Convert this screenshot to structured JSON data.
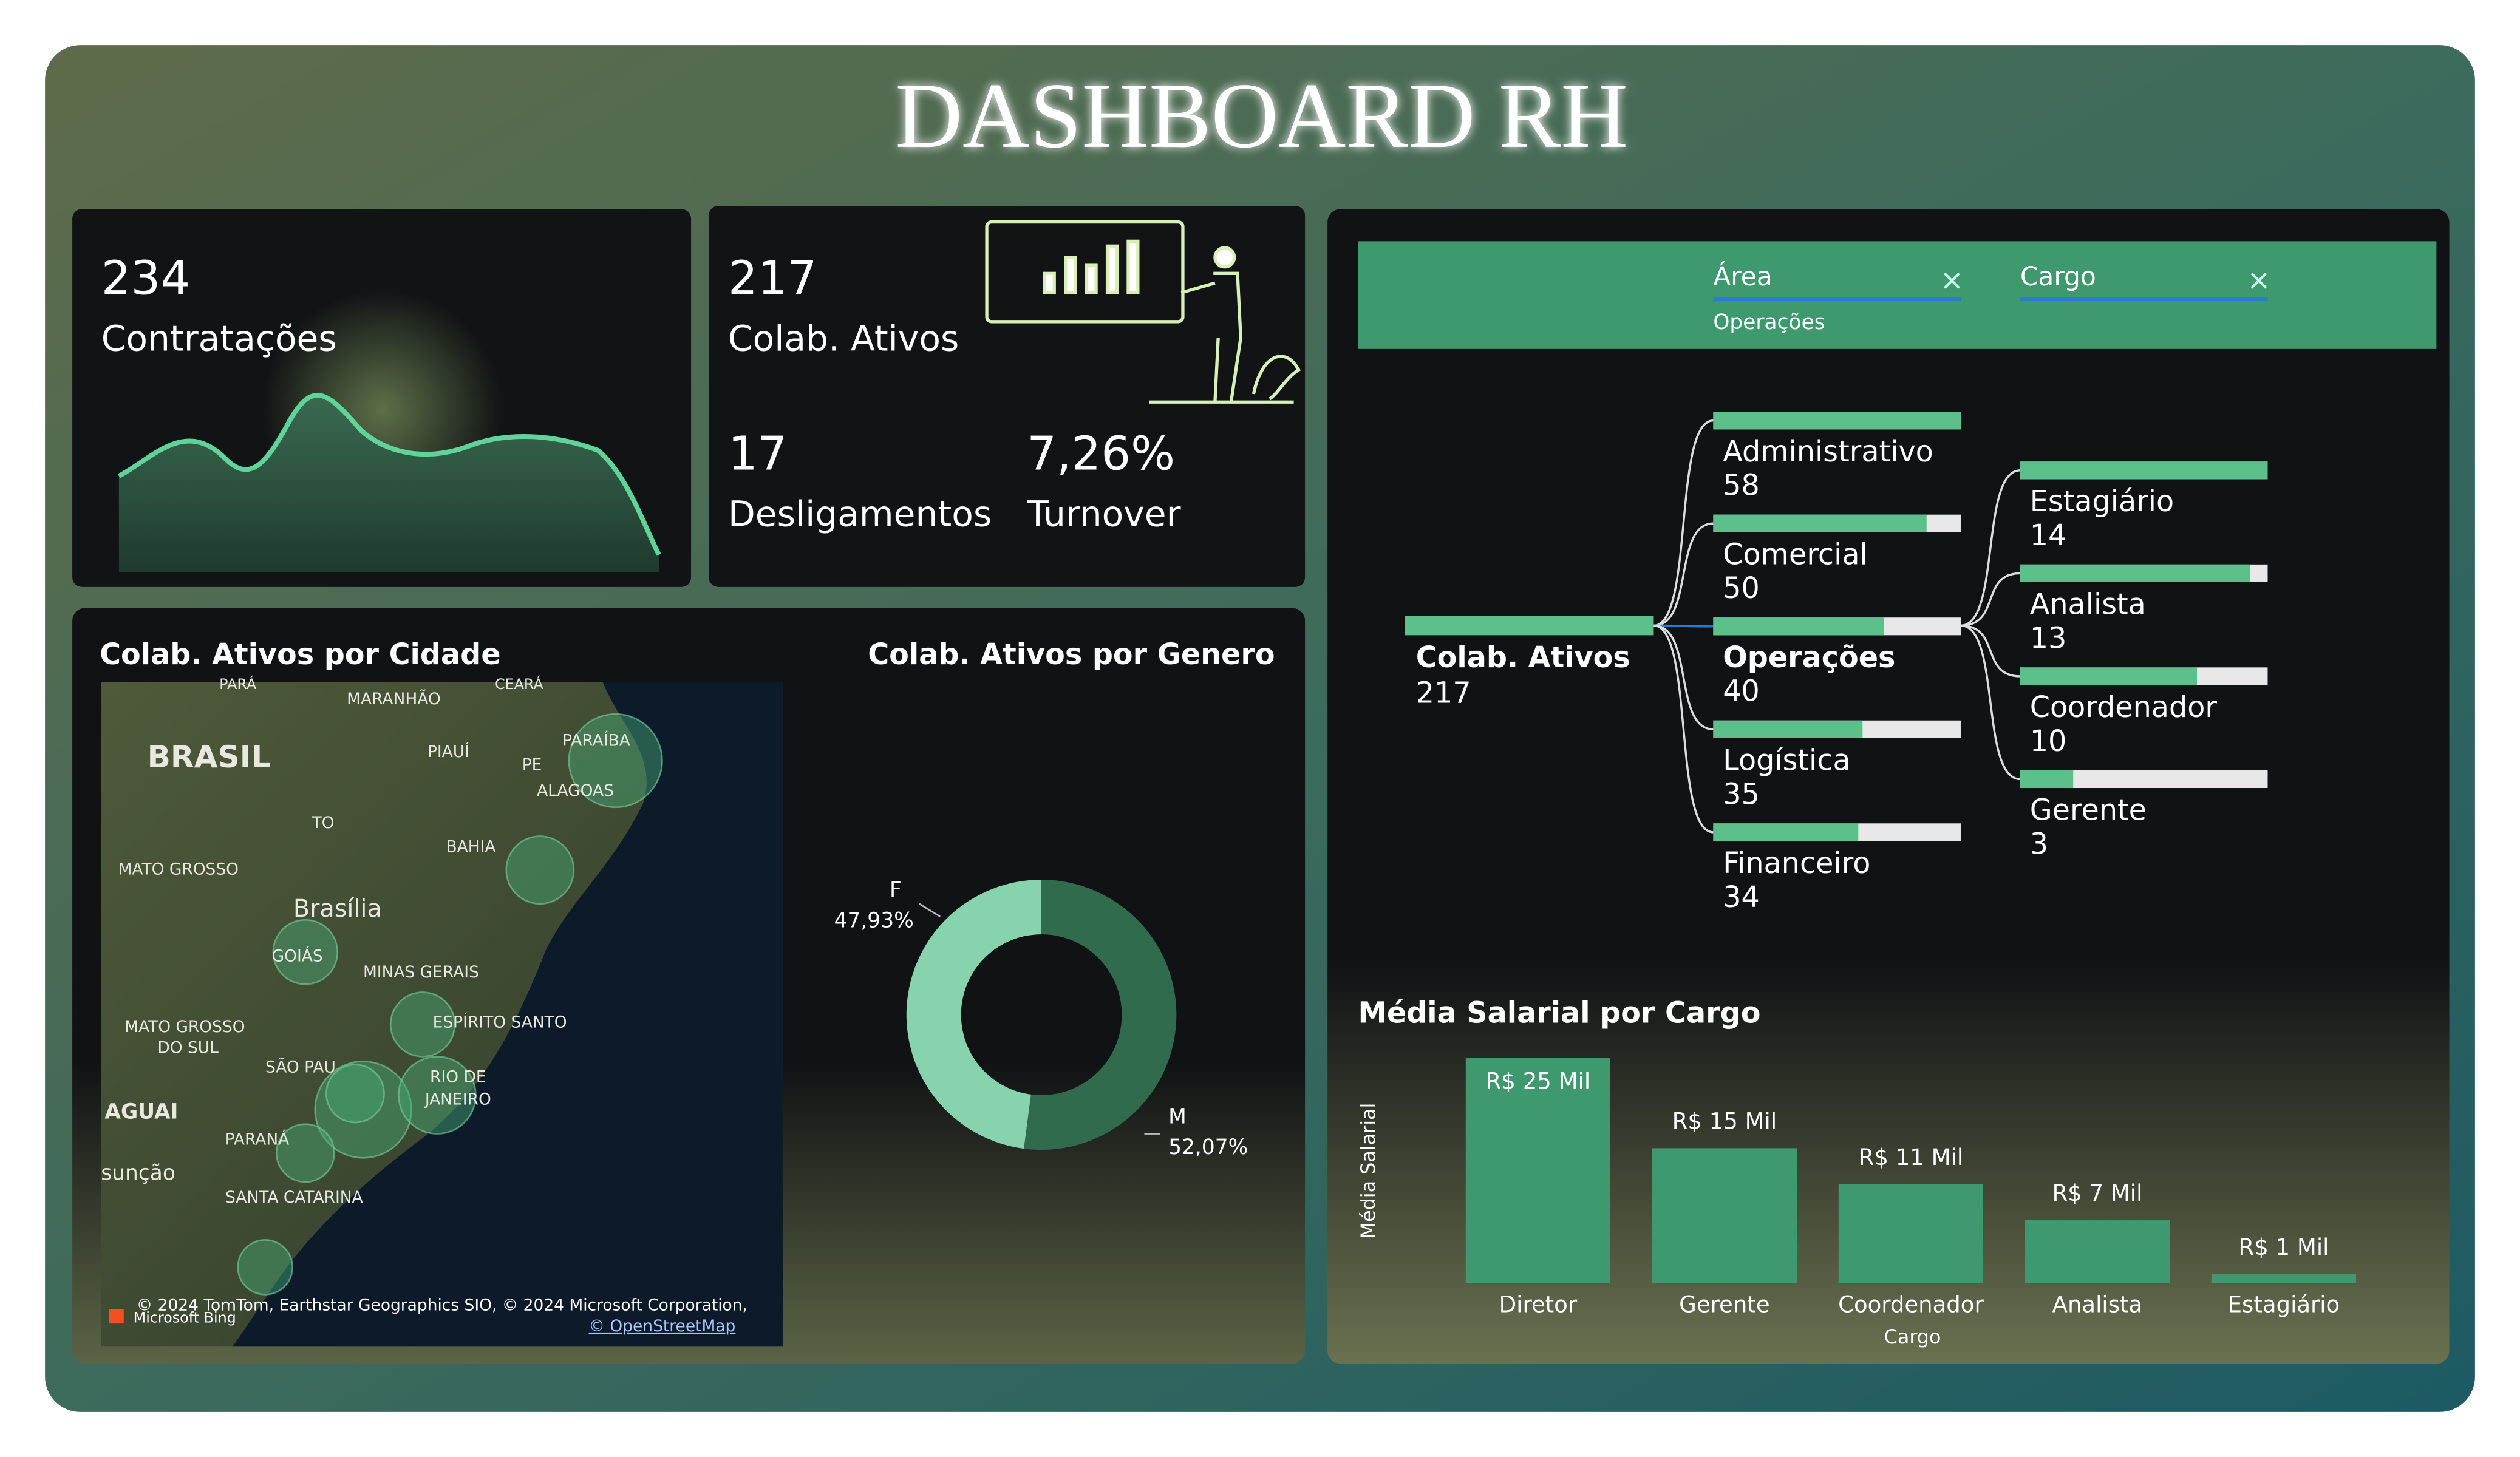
{
  "title": "DASHBOARD RH",
  "kpis": [
    {
      "value": "234",
      "label": "Contratações"
    },
    {
      "value": "217",
      "label": "Colab. Ativos"
    },
    {
      "value": "17",
      "label": "Desligamentos"
    },
    {
      "value": "7,26%",
      "label": "Turnover"
    }
  ],
  "map": {
    "title": "Colab. Ativos por Cidade",
    "labels": [
      "PARÁ",
      "MARANHÃO",
      "CEARÁ",
      "BRASIL",
      "PIAUÍ",
      "PARAÍBA",
      "PE",
      "ALAGOAS",
      "TO",
      "BAHIA",
      "MATO GROSSO",
      "Brasília",
      "GOIÁS",
      "MINAS GERAIS",
      "ESPÍRITO SANTO",
      "MATO GROSSO",
      "DO SUL",
      "SÃO PAU",
      "RIO DE",
      "JANEIRO",
      "AGUAI",
      "PARANÁ",
      "sunção",
      "SANTA CATARINA"
    ],
    "attribution": "© 2024 TomTom, Earthstar Geographics SIO, © 2024 Microsoft Corporation,",
    "bing": "Microsoft Bing",
    "osm": "© OpenStreetMap"
  },
  "filters": {
    "fields": [
      "Área",
      "Cargo"
    ],
    "selected": "Operações"
  },
  "tree": {
    "root": {
      "label": "Colab. Ativos",
      "value": 217
    },
    "areas": [
      {
        "label": "Administrativo",
        "value": 58
      },
      {
        "label": "Comercial",
        "value": 50
      },
      {
        "label": "Operações",
        "value": 40
      },
      {
        "label": "Logística",
        "value": 35
      },
      {
        "label": "Financeiro",
        "value": 34
      }
    ],
    "cargos": [
      {
        "label": "Estagiário",
        "value": 14
      },
      {
        "label": "Analista",
        "value": 13
      },
      {
        "label": "Coordenador",
        "value": 10
      },
      {
        "label": "Gerente",
        "value": 3
      }
    ]
  },
  "chart_data": [
    {
      "type": "donut",
      "title": "Colab. Ativos por Genero",
      "categories": [
        "F",
        "M"
      ],
      "values": [
        47.93,
        52.07
      ],
      "value_labels": [
        "47,93%",
        "52,07%"
      ],
      "colors": [
        "#86d3ae",
        "#2f6b4c"
      ]
    },
    {
      "type": "bar",
      "title": "Média Salarial por Cargo",
      "xlabel": "Cargo",
      "ylabel": "Média Salarial",
      "categories": [
        "Diretor",
        "Gerente",
        "Coordenador",
        "Analista",
        "Estagiário"
      ],
      "values": [
        25,
        15,
        11,
        7,
        1
      ],
      "value_labels": [
        "R$ 25 Mil",
        "R$ 15 Mil",
        "R$ 11 Mil",
        "R$ 7 Mil",
        "R$ 1 Mil"
      ],
      "color": "#3e9a6e"
    }
  ]
}
